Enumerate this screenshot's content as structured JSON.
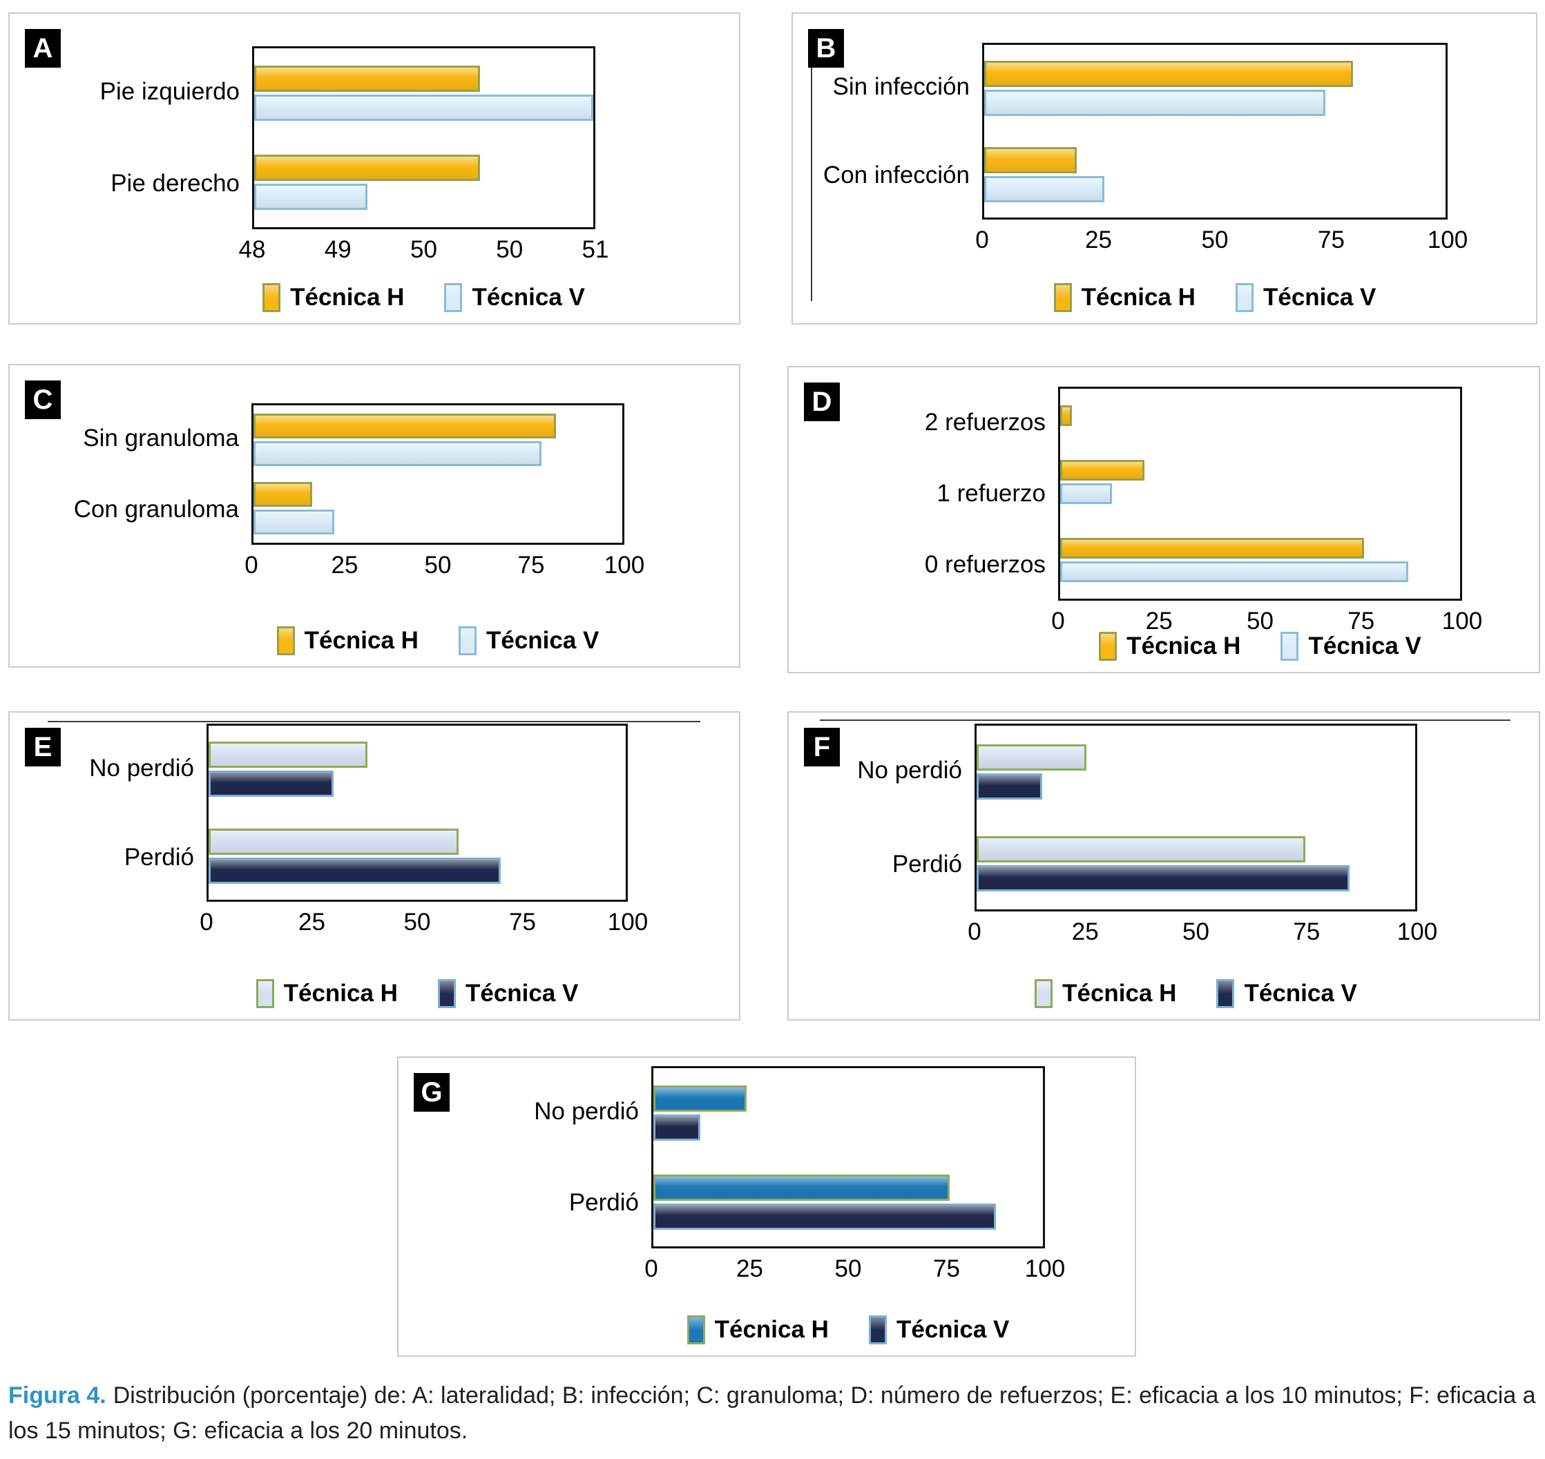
{
  "caption": {
    "label": "Figura 4.",
    "text": "Distribución (porcentaje) de: A: lateralidad; B: infección; C: granuloma; D: número de refuerzos; E: eficacia a los 10 minutos; F: eficacia a los 15 minutos; G: eficacia a los 20 minutos."
  },
  "colors": {
    "tecnica_h_yellow": "#F8B713",
    "yellow_border": "#97A14B",
    "tecnica_v_lightblue": "#D9ECF8",
    "lightblue_border": "#8ABCD9",
    "tecnica_h_lavender": "#D7DFF1",
    "lavender_border": "#8CAC5B",
    "tecnica_v_navy": "#20294E",
    "navy_border": "#7FB0CD",
    "tecnica_h_blue": "#1D79B8",
    "panel_border": "#CBCBCB",
    "plot_border": "#0F0F0F",
    "caption_accent": "#2E93C9"
  },
  "chart_data": [
    {
      "panel": "A",
      "type": "bar",
      "orientation": "horizontal",
      "title": "",
      "categories": [
        "Pie izquierdo",
        "Pie derecho"
      ],
      "series": [
        {
          "name": "Técnica H",
          "values": [
            50,
            50
          ],
          "fill": "#F8B713",
          "border": "#97A14B"
        },
        {
          "name": "Técnica V",
          "values": [
            51,
            49
          ],
          "fill": "#D9ECF8",
          "border": "#8ABCD9"
        }
      ],
      "xlim": [
        48,
        51
      ],
      "xticks": [
        "48",
        "49",
        "50",
        "50",
        "51"
      ],
      "grid": false,
      "legend_position": "bottom"
    },
    {
      "panel": "B",
      "type": "bar",
      "orientation": "horizontal",
      "title": "",
      "categories": [
        "Sin infección",
        "Con infección"
      ],
      "series": [
        {
          "name": "Técnica H",
          "values": [
            80,
            20
          ],
          "fill": "#F8B713",
          "border": "#97A14B"
        },
        {
          "name": "Técnica V",
          "values": [
            74,
            26
          ],
          "fill": "#D9ECF8",
          "border": "#8ABCD9"
        }
      ],
      "xlim": [
        0,
        100
      ],
      "xticks": [
        "0",
        "25",
        "50",
        "75",
        "100"
      ],
      "grid": false,
      "legend_position": "bottom"
    },
    {
      "panel": "C",
      "type": "bar",
      "orientation": "horizontal",
      "title": "",
      "categories": [
        "Sin granuloma",
        "Con granuloma"
      ],
      "series": [
        {
          "name": "Técnica H",
          "values": [
            82,
            16
          ],
          "fill": "#F8B713",
          "border": "#97A14B"
        },
        {
          "name": "Técnica V",
          "values": [
            78,
            22
          ],
          "fill": "#D9ECF8",
          "border": "#8ABCD9"
        }
      ],
      "xlim": [
        0,
        100
      ],
      "xticks": [
        "0",
        "25",
        "50",
        "75",
        "100"
      ],
      "grid": false,
      "legend_position": "bottom"
    },
    {
      "panel": "D",
      "type": "bar",
      "orientation": "horizontal",
      "title": "",
      "categories": [
        "2 refuerzos",
        "1 refuerzo",
        "0 refuerzos"
      ],
      "series": [
        {
          "name": "Técnica H",
          "values": [
            3,
            21,
            76
          ],
          "fill": "#F8B713",
          "border": "#97A14B"
        },
        {
          "name": "Técnica V",
          "values": [
            0,
            13,
            87
          ],
          "fill": "#D9ECF8",
          "border": "#8ABCD9"
        }
      ],
      "xlim": [
        0,
        100
      ],
      "xticks": [
        "0",
        "25",
        "50",
        "75",
        "100"
      ],
      "grid": false,
      "legend_position": "bottom"
    },
    {
      "panel": "E",
      "type": "bar",
      "orientation": "horizontal",
      "title": "",
      "categories": [
        "No perdió",
        "Perdió"
      ],
      "series": [
        {
          "name": "Técnica H",
          "values": [
            38,
            60
          ],
          "fill": "#D7DFF1",
          "border": "#8CAC5B"
        },
        {
          "name": "Técnica V",
          "values": [
            30,
            70
          ],
          "fill": "#20294E",
          "border": "#7FB0CD"
        }
      ],
      "xlim": [
        0,
        100
      ],
      "xticks": [
        "0",
        "25",
        "50",
        "75",
        "100"
      ],
      "grid": false,
      "legend_position": "bottom"
    },
    {
      "panel": "F",
      "type": "bar",
      "orientation": "horizontal",
      "title": "",
      "categories": [
        "No perdió",
        "Perdió"
      ],
      "series": [
        {
          "name": "Técnica H",
          "values": [
            25,
            75
          ],
          "fill": "#D7DFF1",
          "border": "#8CAC5B"
        },
        {
          "name": "Técnica V",
          "values": [
            15,
            85
          ],
          "fill": "#20294E",
          "border": "#7FB0CD"
        }
      ],
      "xlim": [
        0,
        100
      ],
      "xticks": [
        "0",
        "25",
        "50",
        "75",
        "100"
      ],
      "grid": false,
      "legend_position": "bottom"
    },
    {
      "panel": "G",
      "type": "bar",
      "orientation": "horizontal",
      "title": "",
      "categories": [
        "No perdió",
        "Perdió"
      ],
      "series": [
        {
          "name": "Técnica H",
          "values": [
            24,
            76
          ],
          "fill": "#1D79B8",
          "border": "#8CAC5B"
        },
        {
          "name": "Técnica V",
          "values": [
            12,
            88
          ],
          "fill": "#20294E",
          "border": "#7FB0CD"
        }
      ],
      "xlim": [
        0,
        100
      ],
      "xticks": [
        "0",
        "25",
        "50",
        "75",
        "100"
      ],
      "grid": false,
      "legend_position": "bottom"
    }
  ]
}
